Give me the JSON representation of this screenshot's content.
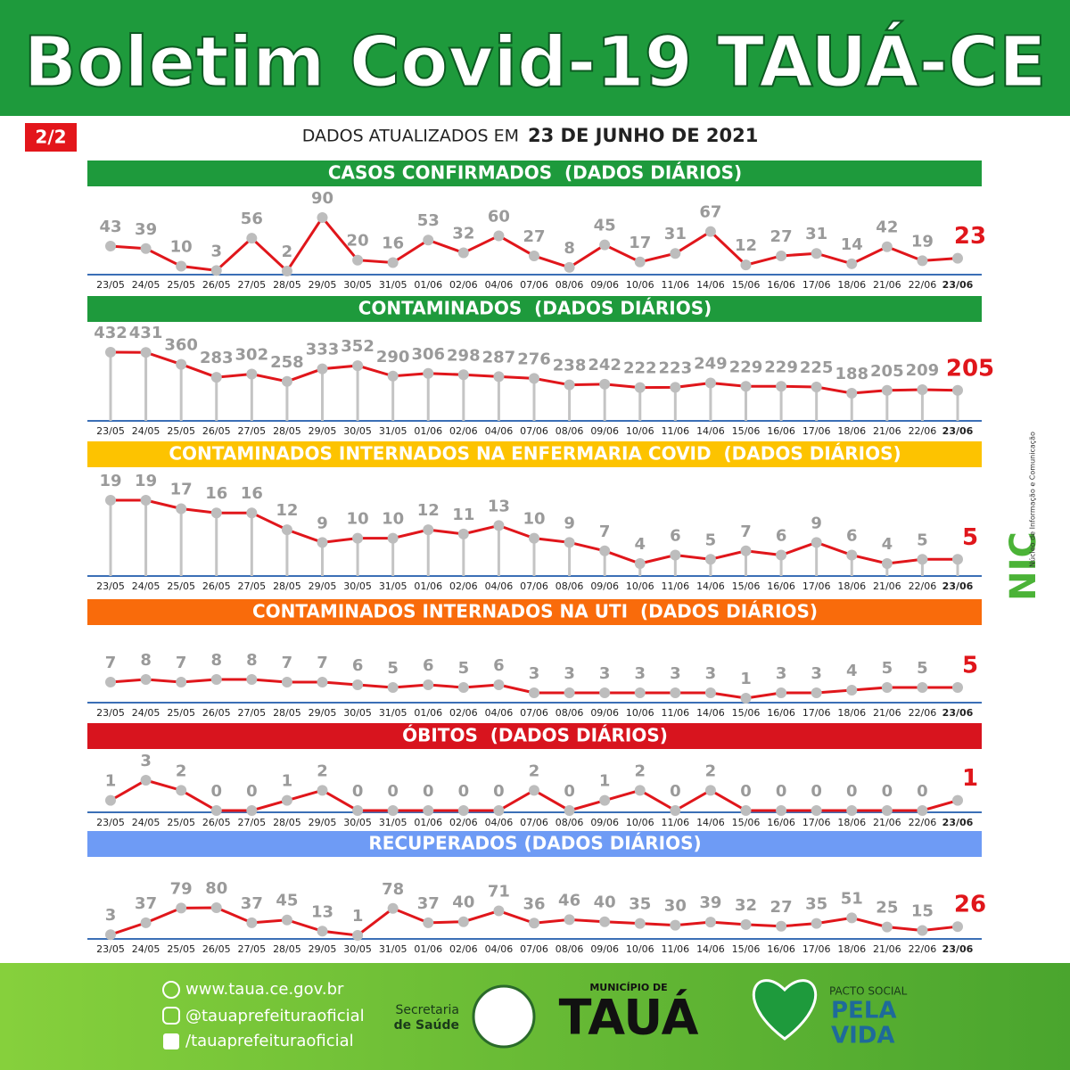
{
  "header": {
    "title": "Boletim Covid-19 TAUÁ-CE",
    "page": "2/2",
    "updated_prefix": "DADOS ATUALIZADOS EM",
    "updated_date": "23 DE JUNHO DE 2021"
  },
  "chart_data": [
    {
      "type": "line",
      "title": "CASOS CONFIRMADOS  (DADOS DIÁRIOS)",
      "header_color": "#1e9a3c",
      "color": "#e0161b",
      "stems": false,
      "categories": [
        "23/05",
        "24/05",
        "25/05",
        "26/05",
        "27/05",
        "28/05",
        "29/05",
        "30/05",
        "31/05",
        "01/06",
        "02/06",
        "04/06",
        "07/06",
        "08/06",
        "09/06",
        "10/06",
        "11/06",
        "14/06",
        "15/06",
        "16/06",
        "17/06",
        "18/06",
        "21/06",
        "22/06",
        "23/06"
      ],
      "values": [
        43,
        39,
        10,
        3,
        56,
        2,
        90,
        20,
        16,
        53,
        32,
        60,
        27,
        8,
        45,
        17,
        31,
        67,
        12,
        27,
        31,
        14,
        42,
        19,
        23
      ]
    },
    {
      "type": "line",
      "title": "CONTAMINADOS  (DADOS DIÁRIOS)",
      "header_color": "#1e9a3c",
      "color": "#e0161b",
      "stems": true,
      "categories": [
        "23/05",
        "24/05",
        "25/05",
        "26/05",
        "27/05",
        "28/05",
        "29/05",
        "30/05",
        "31/05",
        "01/06",
        "02/06",
        "04/06",
        "07/06",
        "08/06",
        "09/06",
        "10/06",
        "11/06",
        "14/06",
        "15/06",
        "16/06",
        "17/06",
        "18/06",
        "21/06",
        "22/06",
        "23/06"
      ],
      "values": [
        432,
        431,
        360,
        283,
        302,
        258,
        333,
        352,
        290,
        306,
        298,
        287,
        276,
        238,
        242,
        222,
        223,
        249,
        229,
        229,
        225,
        188,
        205,
        209,
        205
      ]
    },
    {
      "type": "line",
      "title": "CONTAMINADOS INTERNADOS NA ENFERMARIA COVID  (DADOS DIÁRIOS)",
      "header_color": "#fdc300",
      "color": "#e0161b",
      "stems": true,
      "categories": [
        "23/05",
        "24/05",
        "25/05",
        "26/05",
        "27/05",
        "28/05",
        "29/05",
        "30/05",
        "31/05",
        "01/06",
        "02/06",
        "04/06",
        "07/06",
        "08/06",
        "09/06",
        "10/06",
        "11/06",
        "14/06",
        "15/06",
        "16/06",
        "17/06",
        "18/06",
        "21/06",
        "22/06",
        "23/06"
      ],
      "values": [
        19,
        19,
        17,
        16,
        16,
        12,
        9,
        10,
        10,
        12,
        11,
        13,
        10,
        9,
        7,
        4,
        6,
        5,
        7,
        6,
        9,
        6,
        4,
        5,
        5
      ]
    },
    {
      "type": "line",
      "title": "CONTAMINADOS INTERNADOS NA UTI  (DADOS DIÁRIOS)",
      "header_color": "#f96b0b",
      "color": "#e0161b",
      "stems": false,
      "categories": [
        "23/05",
        "24/05",
        "25/05",
        "26/05",
        "27/05",
        "28/05",
        "29/05",
        "30/05",
        "31/05",
        "01/06",
        "02/06",
        "04/06",
        "07/06",
        "08/06",
        "09/06",
        "10/06",
        "11/06",
        "14/06",
        "15/06",
        "16/06",
        "17/06",
        "18/06",
        "21/06",
        "22/06",
        "23/06"
      ],
      "values": [
        7,
        8,
        7,
        8,
        8,
        7,
        7,
        6,
        5,
        6,
        5,
        6,
        3,
        3,
        3,
        3,
        3,
        3,
        1,
        3,
        3,
        4,
        5,
        5,
        5
      ]
    },
    {
      "type": "line",
      "title": "ÓBITOS  (DADOS DIÁRIOS)",
      "header_color": "#d8141e",
      "color": "#e0161b",
      "stems": false,
      "categories": [
        "23/05",
        "24/05",
        "25/05",
        "26/05",
        "27/05",
        "28/05",
        "29/05",
        "30/05",
        "31/05",
        "01/06",
        "02/06",
        "04/06",
        "07/06",
        "08/06",
        "09/06",
        "10/06",
        "11/06",
        "14/06",
        "15/06",
        "16/06",
        "17/06",
        "18/06",
        "21/06",
        "22/06",
        "23/06"
      ],
      "values": [
        1,
        3,
        2,
        0,
        0,
        1,
        2,
        0,
        0,
        0,
        0,
        0,
        2,
        0,
        1,
        2,
        0,
        2,
        0,
        0,
        0,
        0,
        0,
        0,
        1
      ]
    },
    {
      "type": "line",
      "title": "RECUPERADOS (DADOS DIÁRIOS)",
      "header_color": "#6e9bf5",
      "color": "#e0161b",
      "stems": false,
      "categories": [
        "23/05",
        "24/05",
        "25/05",
        "26/05",
        "27/05",
        "28/05",
        "29/05",
        "30/05",
        "31/05",
        "01/06",
        "02/06",
        "04/06",
        "07/06",
        "08/06",
        "09/06",
        "10/06",
        "11/06",
        "14/06",
        "15/06",
        "16/06",
        "17/06",
        "18/06",
        "21/06",
        "22/06",
        "23/06"
      ],
      "values": [
        3,
        37,
        79,
        80,
        37,
        45,
        13,
        1,
        78,
        37,
        40,
        71,
        36,
        46,
        40,
        35,
        30,
        39,
        32,
        27,
        35,
        51,
        25,
        15,
        26
      ]
    }
  ],
  "side": {
    "logo": "NIC",
    "caption": "Núcleo de Informação e Comunicação"
  },
  "footer": {
    "website": "www.taua.ce.gov.br",
    "instagram": "@tauaprefeituraoficial",
    "facebook": "/tauaprefeituraoficial",
    "secretaria": "Secretaria",
    "saude": "de Saúde",
    "municipio": "MUNICÍPIO DE",
    "city": "TAUÁ",
    "pacto": "PACTO SOCIAL",
    "pela": "PELA",
    "vida": "VIDA"
  }
}
